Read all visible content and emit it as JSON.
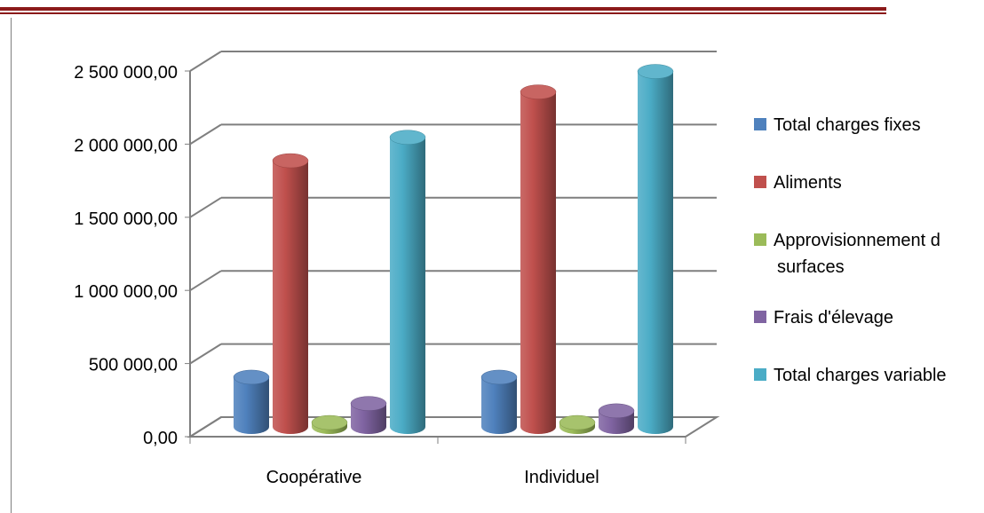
{
  "chart_data": {
    "type": "bar",
    "title": "",
    "xlabel": "",
    "ylabel": "",
    "categories": [
      "Coopérative",
      "Individuel"
    ],
    "ylim": [
      0,
      2500000
    ],
    "yticks": [
      0,
      500000,
      1000000,
      1500000,
      2000000,
      2500000
    ],
    "ytick_labels": [
      "0,00",
      "500 000,00",
      "1 000 000,00",
      "1 500 000,00",
      "2 000 000,00",
      "2 500 000,00"
    ],
    "grid": true,
    "legend_position": "right",
    "series": [
      {
        "name": "Total charges fixes",
        "values": [
          340000,
          340000
        ],
        "color": "#4f81bd"
      },
      {
        "name": "Aliments",
        "values": [
          1820000,
          2290000
        ],
        "color": "#c0504d"
      },
      {
        "name": "Approvisionnement d surfaces",
        "values": [
          30000,
          30000
        ],
        "color": "#9bbb59"
      },
      {
        "name": "Frais d'élevage",
        "values": [
          160000,
          110000
        ],
        "color": "#8064a2"
      },
      {
        "name": "Total charges variable",
        "values": [
          1980000,
          2430000
        ],
        "color": "#4bacc6"
      }
    ]
  }
}
